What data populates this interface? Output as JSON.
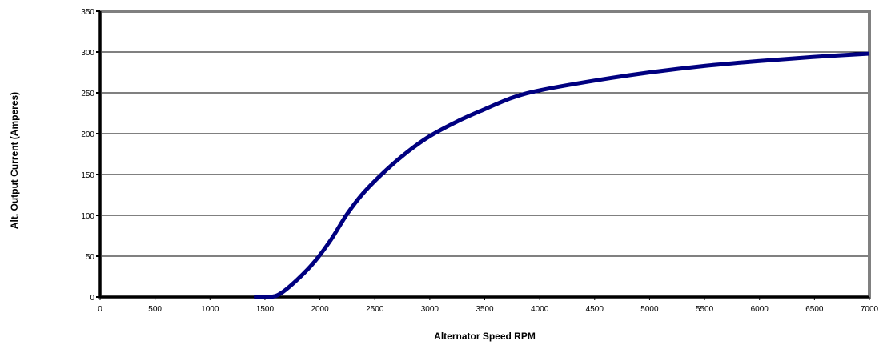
{
  "chart_data": {
    "type": "line",
    "title": "",
    "xlabel": "Alternator Speed RPM",
    "ylabel": "Alt. Output Current (Amperes)",
    "xlim": [
      0,
      7000
    ],
    "ylim": [
      0,
      350
    ],
    "x_ticks": [
      0,
      500,
      1000,
      1500,
      2000,
      2500,
      3000,
      3500,
      4000,
      4500,
      5000,
      5500,
      6000,
      6500,
      7000
    ],
    "y_ticks": [
      0,
      50,
      100,
      150,
      200,
      250,
      300,
      350
    ],
    "grid": "horizontal",
    "legend": "none",
    "series": [
      {
        "color": "#000080",
        "x": [
          1400,
          1550,
          1650,
          1800,
          1950,
          2100,
          2250,
          2400,
          2600,
          2800,
          3000,
          3250,
          3500,
          3750,
          4000,
          4500,
          5000,
          5500,
          6000,
          6500,
          7000
        ],
        "y": [
          0,
          0,
          5,
          22,
          43,
          70,
          102,
          128,
          155,
          178,
          197,
          215,
          230,
          244,
          253,
          265,
          275,
          283,
          289,
          294,
          298
        ]
      }
    ]
  },
  "colors": {
    "frame": "#808080",
    "axis": "#000000",
    "gridline": "#000000"
  }
}
